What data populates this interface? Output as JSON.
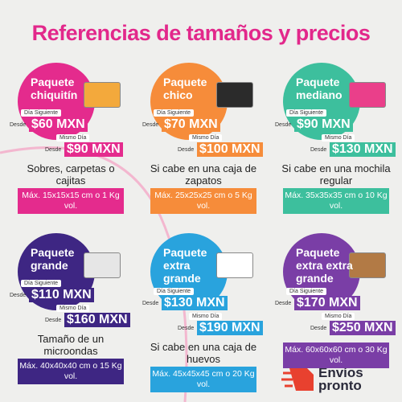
{
  "header": {
    "title": "Referencias de tamaños y precios"
  },
  "packages": [
    {
      "name": [
        "Paquete",
        "chiquitín"
      ],
      "next_day": {
        "label": "Día Siguiente",
        "from": "Desde",
        "price": "$60 MXN"
      },
      "same_day": {
        "label": "Mismo Día",
        "from": "Desde",
        "price": "$90 MXN"
      },
      "description": "Sobres, carpetas o cajitas",
      "size": "Máx. 15x15x15 cm o 1 Kg vol."
    },
    {
      "name": [
        "Paquete",
        "chico"
      ],
      "next_day": {
        "label": "Día Siguiente",
        "from": "Desde",
        "price": "$70 MXN"
      },
      "same_day": {
        "label": "Mismo Día",
        "from": "Desde",
        "price": "$100 MXN"
      },
      "description": "Si cabe en una caja de zapatos",
      "size": "Máx. 25x25x25 cm o 5 Kg vol."
    },
    {
      "name": [
        "Paquete",
        "mediano"
      ],
      "next_day": {
        "label": "Día Siguiente",
        "from": "Desde",
        "price": "$90 MXN"
      },
      "same_day": {
        "label": "Mismo Día",
        "from": "Desde",
        "price": "$130 MXN"
      },
      "description": "Si cabe en una mochila regular",
      "size": "Máx. 35x35x35 cm o 10 Kg vol."
    },
    {
      "name": [
        "Paquete",
        "grande"
      ],
      "next_day": {
        "label": "Día Siguiente",
        "from": "Desde",
        "price": "$110 MXN"
      },
      "same_day": {
        "label": "Mismo Día",
        "from": "Desde",
        "price": "$160 MXN"
      },
      "description": "Tamaño de un microondas",
      "size": "Máx. 40x40x40 cm o 15 Kg vol."
    },
    {
      "name": [
        "Paquete",
        "extra",
        "grande"
      ],
      "next_day": {
        "label": "Día Siguiente",
        "from": "Desde",
        "price": "$130 MXN"
      },
      "same_day": {
        "label": "Mismo Día",
        "from": "Desde",
        "price": "$190 MXN"
      },
      "description": "Si cabe en una caja de huevos",
      "size": "Máx. 45x45x45 cm o 20 Kg vol."
    },
    {
      "name": [
        "Paquete",
        "extra extra",
        "grande"
      ],
      "next_day": {
        "label": "Día Siguiente",
        "from": "Desde",
        "price": "$170 MXN"
      },
      "same_day": {
        "label": "Mismo Día",
        "from": "Desde",
        "price": "$250 MXN"
      },
      "description": "Máx. 60x60x60 cm o 30 Kg vol.",
      "size": null
    }
  ],
  "brand": {
    "name": [
      "Envíos",
      "pronto"
    ]
  }
}
